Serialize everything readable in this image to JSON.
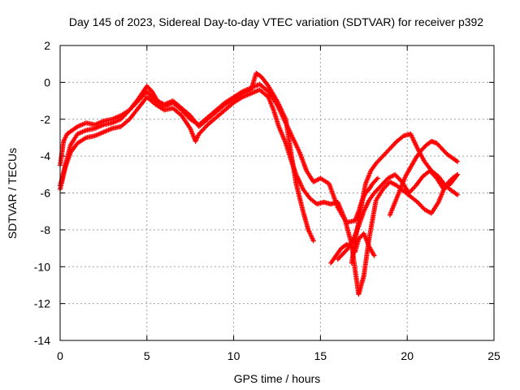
{
  "chart_data": {
    "type": "scatter",
    "title": "Day 145 of 2023, Sidereal Day-to-day VTEC variation (SDTVAR) for receiver p392",
    "xlabel": "GPS time / hours",
    "ylabel": "SDTVAR / TECUs",
    "xlim": [
      0,
      25
    ],
    "ylim": [
      -14,
      2
    ],
    "xticks": [
      0,
      5,
      10,
      15,
      20,
      25
    ],
    "yticks": [
      -14,
      -12,
      -10,
      -8,
      -6,
      -4,
      -2,
      0,
      2
    ],
    "grid": true,
    "marker": "plus",
    "color": "#ff0000",
    "series": [
      {
        "x": [
          0.0,
          0.2,
          0.4,
          0.7,
          1.0,
          1.5,
          2.0,
          2.5,
          3.0,
          3.5,
          4.0,
          4.5,
          5.0,
          5.3,
          5.6,
          6.0,
          6.5,
          7.0,
          7.5,
          8.0,
          8.5,
          9.0,
          9.5,
          10.0,
          10.5,
          11.0,
          11.3,
          11.6,
          12.0,
          12.5,
          13.0,
          13.3,
          13.6,
          14.0,
          14.3,
          14.6
        ],
        "y": [
          -4.5,
          -3.2,
          -2.8,
          -2.6,
          -2.4,
          -2.2,
          -2.3,
          -2.1,
          -2.0,
          -1.8,
          -1.5,
          -0.9,
          -0.2,
          -0.5,
          -1.0,
          -1.2,
          -1.0,
          -1.4,
          -1.8,
          -2.4,
          -2.0,
          -1.6,
          -1.2,
          -0.9,
          -0.6,
          -0.4,
          0.5,
          0.3,
          -0.2,
          -1.0,
          -2.0,
          -3.8,
          -5.5,
          -7.0,
          -8.0,
          -8.6
        ]
      },
      {
        "x": [
          0.0,
          0.3,
          0.6,
          1.0,
          1.5,
          2.0,
          2.5,
          3.0,
          3.5,
          4.0,
          4.5,
          5.0,
          5.5,
          6.0,
          6.5,
          7.0,
          7.5,
          8.0,
          8.5,
          9.0,
          9.5,
          10.0,
          10.5,
          11.0,
          11.5,
          12.0,
          12.5,
          13.0,
          13.4,
          13.8,
          14.2,
          14.6,
          15.0,
          15.5,
          16.0,
          16.5,
          17.0,
          17.2,
          17.4,
          17.6,
          17.8,
          18.0,
          18.3
        ],
        "y": [
          -5.6,
          -4.5,
          -3.4,
          -2.8,
          -2.6,
          -2.5,
          -2.3,
          -2.2,
          -2.0,
          -1.5,
          -1.0,
          -0.5,
          -1.0,
          -1.3,
          -1.1,
          -1.5,
          -2.0,
          -2.3,
          -1.9,
          -1.5,
          -1.1,
          -0.8,
          -0.5,
          -0.3,
          -0.1,
          -0.5,
          -1.2,
          -2.2,
          -3.0,
          -3.8,
          -4.8,
          -5.4,
          -5.2,
          -5.5,
          -6.8,
          -7.6,
          -7.5,
          -7.0,
          -6.4,
          -6.0,
          -5.8,
          -5.5,
          -5.2
        ]
      },
      {
        "x": [
          0.0,
          0.3,
          0.6,
          1.0,
          1.5,
          2.0,
          2.5,
          3.0,
          3.5,
          4.0,
          4.5,
          5.0,
          5.5,
          6.0,
          6.5,
          7.0,
          7.5,
          7.8,
          8.0,
          8.5,
          9.0,
          9.5,
          10.0,
          10.5,
          11.0,
          11.5,
          12.0,
          12.3,
          12.6,
          13.0,
          13.3,
          13.6,
          14.0,
          14.4,
          14.8,
          15.2,
          15.6,
          16.0,
          16.4,
          16.8,
          17.0,
          17.2,
          17.5,
          17.8,
          18.2,
          18.6,
          19.0,
          19.4,
          19.8,
          20.2,
          20.6,
          21.0,
          21.4,
          21.8,
          22.2,
          22.6,
          22.9
        ],
        "y": [
          -5.8,
          -4.6,
          -3.8,
          -3.3,
          -3.0,
          -2.9,
          -2.7,
          -2.5,
          -2.4,
          -2.0,
          -1.4,
          -0.8,
          -1.2,
          -1.5,
          -1.4,
          -1.8,
          -2.5,
          -3.2,
          -2.8,
          -2.3,
          -1.9,
          -1.5,
          -1.1,
          -0.8,
          -0.6,
          -0.4,
          -0.8,
          -1.5,
          -2.4,
          -3.3,
          -4.2,
          -5.0,
          -5.8,
          -6.3,
          -6.6,
          -6.5,
          -6.6,
          -6.5,
          -7.4,
          -8.8,
          -10.2,
          -11.5,
          -10.5,
          -8.5,
          -6.4,
          -5.8,
          -5.4,
          -5.6,
          -5.9,
          -6.2,
          -6.5,
          -6.9,
          -7.1,
          -6.5,
          -5.6,
          -5.2,
          -5.0
        ]
      },
      {
        "x": [
          16.0,
          16.3,
          16.6,
          16.9,
          17.2,
          17.5,
          17.8,
          18.1,
          18.5,
          18.9,
          19.3,
          19.7,
          20.1,
          20.5,
          20.9,
          21.3,
          21.7,
          22.1,
          22.5,
          22.9
        ],
        "y": [
          -9.6,
          -9.3,
          -9.0,
          -8.5,
          -7.8,
          -7.0,
          -6.4,
          -6.0,
          -5.6,
          -5.2,
          -5.0,
          -5.4,
          -6.0,
          -5.6,
          -5.1,
          -4.8,
          -5.2,
          -5.8,
          -5.5,
          -5.0
        ]
      },
      {
        "x": [
          16.8,
          17.0,
          17.3,
          17.6,
          17.9,
          18.2,
          18.6,
          19.0,
          19.4,
          19.8,
          20.2,
          20.6,
          21.0,
          21.4,
          21.8,
          22.2,
          22.6,
          22.9
        ],
        "y": [
          -9.8,
          -8.6,
          -7.0,
          -5.5,
          -4.8,
          -4.4,
          -4.0,
          -3.6,
          -3.2,
          -2.9,
          -2.8,
          -3.6,
          -4.3,
          -4.8,
          -5.1,
          -5.6,
          -5.9,
          -6.1
        ]
      },
      {
        "x": [
          19.0,
          19.3,
          19.6,
          19.9,
          20.2,
          20.5,
          20.8,
          21.1,
          21.4,
          21.7,
          22.0,
          22.3,
          22.6,
          22.9
        ],
        "y": [
          -7.2,
          -6.5,
          -5.8,
          -5.1,
          -4.6,
          -4.1,
          -3.7,
          -3.4,
          -3.2,
          -3.3,
          -3.6,
          -3.9,
          -4.1,
          -4.3
        ]
      },
      {
        "x": [
          15.6,
          15.9,
          16.2,
          16.5,
          16.8,
          17.0,
          17.2,
          17.5,
          17.8,
          18.1
        ],
        "y": [
          -9.8,
          -9.4,
          -9.0,
          -8.8,
          -8.9,
          -9.2,
          -8.5,
          -8.2,
          -8.9,
          -9.4
        ]
      }
    ]
  }
}
